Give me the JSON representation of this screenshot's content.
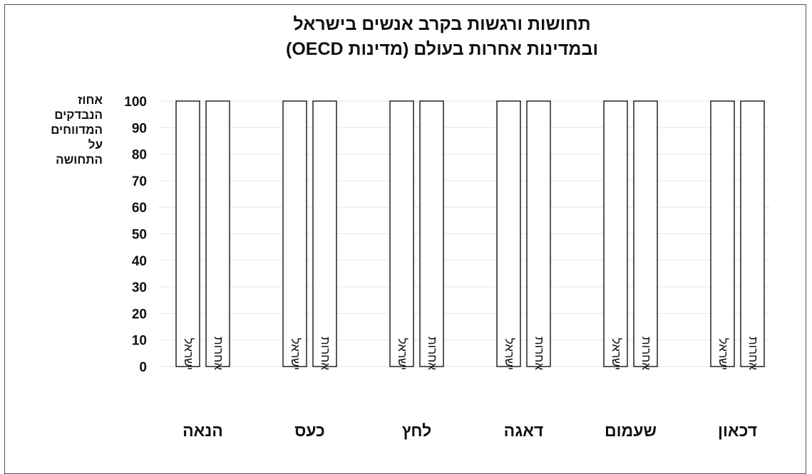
{
  "chart_data": {
    "type": "bar",
    "title": "תחושות ורגשות בקרב אנשים בישראל",
    "subtitle": "ובמדינות אחרות בעולם (מדינות OECD)",
    "ylabel_lines": [
      "אחוז",
      "הנבדקים",
      "המדווחים",
      "על",
      "התחושה"
    ],
    "ylim": [
      0,
      100
    ],
    "yticks": [
      0,
      10,
      20,
      30,
      40,
      50,
      60,
      70,
      80,
      90,
      100
    ],
    "grid": true,
    "categories": [
      "הנאה",
      "כעס",
      "לחץ",
      "דאגה",
      "שעמום",
      "דכאון"
    ],
    "series": [
      {
        "name": "ישראל",
        "values": [
          100,
          100,
          100,
          100,
          100,
          100
        ]
      },
      {
        "name": "אחרות",
        "values": [
          100,
          100,
          100,
          100,
          100,
          100
        ]
      }
    ],
    "bar_fill": "#ffffff",
    "bar_stroke": "#000000"
  }
}
